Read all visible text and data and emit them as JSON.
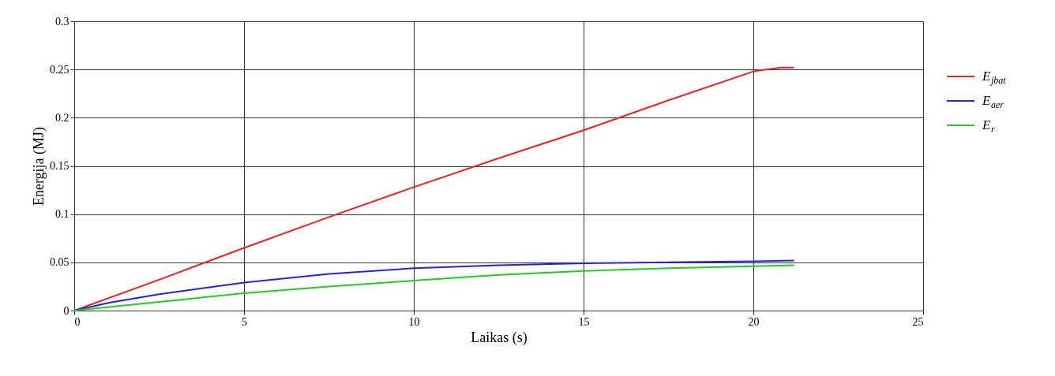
{
  "chart_data": {
    "type": "line",
    "xlabel": "Laikas (s)",
    "ylabel": "Energija (MJ)",
    "xlim": [
      0,
      25
    ],
    "xticks": [
      0,
      5,
      10,
      15,
      20,
      25
    ],
    "ylim": [
      0,
      0.3
    ],
    "yticks": [
      0,
      0.05,
      0.1,
      0.15,
      0.2,
      0.25,
      0.3
    ],
    "grid": true,
    "legend": "right",
    "line_style": "solid",
    "marker": "none",
    "series": [
      {
        "name": "E$_{jbat}$",
        "color": "#ee2222",
        "x": [
          0,
          2.5,
          5,
          7.5,
          10,
          12.5,
          15,
          17.5,
          20,
          20.8,
          21.2
        ],
        "values": [
          0,
          0.032,
          0.065,
          0.097,
          0.128,
          0.158,
          0.187,
          0.218,
          0.248,
          0.252,
          0.252
        ]
      },
      {
        "name": "E$_{aer}$",
        "color": "#2222ee",
        "x": [
          0,
          1,
          2.5,
          5,
          7.5,
          10,
          12.5,
          15,
          17.5,
          20,
          21.2
        ],
        "values": [
          0,
          0.008,
          0.017,
          0.029,
          0.038,
          0.044,
          0.047,
          0.049,
          0.05,
          0.051,
          0.052
        ]
      },
      {
        "name": "E$_{r}$",
        "color": "#22cc22",
        "x": [
          0,
          2.5,
          5,
          7.5,
          10,
          12.5,
          15,
          17.5,
          20,
          21.2
        ],
        "values": [
          0,
          0.009,
          0.018,
          0.025,
          0.031,
          0.037,
          0.041,
          0.044,
          0.046,
          0.047
        ]
      }
    ]
  }
}
